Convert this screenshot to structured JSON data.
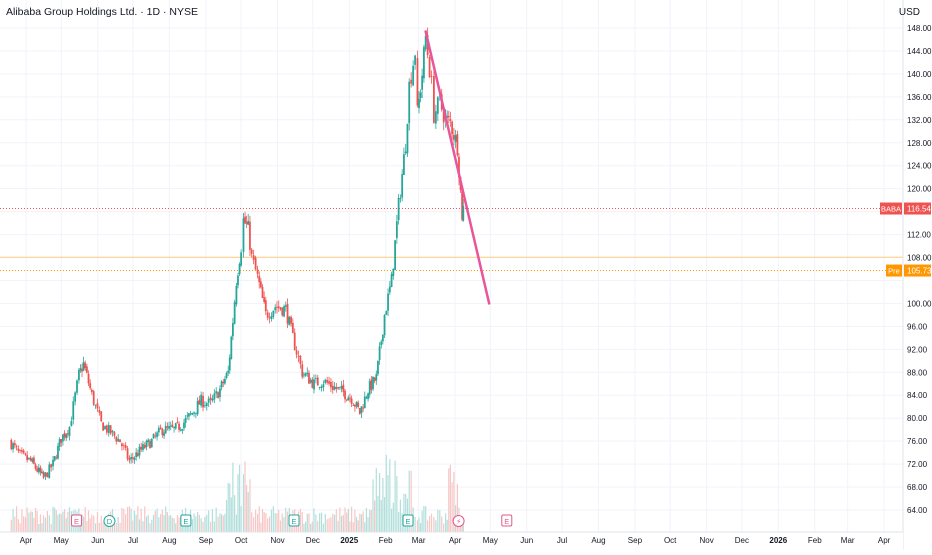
{
  "header": {
    "title": "Alibaba Group Holdings Ltd. · 1D · NYSE",
    "currency": "USD"
  },
  "colors": {
    "up": "#26a69a",
    "down": "#ef5350",
    "trendline": "#e8559a",
    "baba_label": "#ef5350",
    "pre_label": "#ff9800",
    "grid": "#f0f3fa",
    "axis_text": "#131722"
  },
  "chart_data": {
    "type": "candlestick",
    "title": "Alibaba Group Holdings Ltd. · 1D · NYSE",
    "currency": "USD",
    "ylim": [
      64,
      150
    ],
    "y_ticks": [
      64,
      68,
      72,
      76,
      80,
      84,
      88,
      92,
      96,
      100,
      104,
      108,
      112,
      116,
      120,
      124,
      128,
      132,
      136,
      140,
      144,
      148
    ],
    "x_ticks": [
      "Apr",
      "May",
      "Jun",
      "Jul",
      "Aug",
      "Sep",
      "Oct",
      "Nov",
      "Dec",
      "2025",
      "Feb",
      "Mar",
      "Apr",
      "May",
      "Jun",
      "Jul",
      "Aug",
      "Sep",
      "Oct",
      "Nov",
      "Dec",
      "2026",
      "Feb",
      "Mar",
      "Apr"
    ],
    "grid": true,
    "price_labels": [
      {
        "name": "BABA",
        "value": 116.54
      },
      {
        "name": "Pre",
        "value": 105.73
      }
    ],
    "horizontal_lines": [
      116.54,
      108.05,
      105.73
    ],
    "trendline": {
      "from": {
        "x": "2025-03-07",
        "y": 147.4
      },
      "to": {
        "x": "2025-04-30",
        "y": 100.0
      }
    },
    "events": [
      {
        "x": "2024-05-14",
        "label": "E"
      },
      {
        "x": "2024-06-11",
        "label": "D"
      },
      {
        "x": "2024-08-15",
        "label": "E"
      },
      {
        "x": "2024-11-15",
        "label": "E"
      },
      {
        "x": "2025-02-20",
        "label": "E"
      },
      {
        "x": "2025-04-04",
        "label": "⚡"
      },
      {
        "x": "2025-05-15",
        "label": "E"
      }
    ],
    "anchors": [
      [
        "2024-03-18",
        76.0
      ],
      [
        "2024-03-27",
        73.5
      ],
      [
        "2024-04-05",
        72.5
      ],
      [
        "2024-04-16",
        69.5
      ],
      [
        "2024-04-24",
        72.0
      ],
      [
        "2024-05-01",
        76.5
      ],
      [
        "2024-05-08",
        78.5
      ],
      [
        "2024-05-16",
        87.5
      ],
      [
        "2024-05-20",
        89.5
      ],
      [
        "2024-05-27",
        84.0
      ],
      [
        "2024-06-04",
        79.0
      ],
      [
        "2024-06-12",
        77.5
      ],
      [
        "2024-06-20",
        76.0
      ],
      [
        "2024-06-28",
        72.5
      ],
      [
        "2024-07-08",
        74.5
      ],
      [
        "2024-07-17",
        76.0
      ],
      [
        "2024-07-26",
        78.0
      ],
      [
        "2024-08-05",
        78.0
      ],
      [
        "2024-08-12",
        79.0
      ],
      [
        "2024-08-19",
        80.5
      ],
      [
        "2024-08-28",
        83.0
      ],
      [
        "2024-09-05",
        82.5
      ],
      [
        "2024-09-13",
        85.0
      ],
      [
        "2024-09-20",
        88.0
      ],
      [
        "2024-09-24",
        97.0
      ],
      [
        "2024-09-27",
        104.0
      ],
      [
        "2024-10-01",
        110.0
      ],
      [
        "2024-10-03",
        114.5
      ],
      [
        "2024-10-07",
        113.0
      ],
      [
        "2024-10-10",
        108.0
      ],
      [
        "2024-10-15",
        104.5
      ],
      [
        "2024-10-22",
        98.0
      ],
      [
        "2024-10-30",
        99.5
      ],
      [
        "2024-11-08",
        99.0
      ],
      [
        "2024-11-14",
        94.0
      ],
      [
        "2024-11-22",
        88.0
      ],
      [
        "2024-12-02",
        86.0
      ],
      [
        "2024-12-10",
        86.5
      ],
      [
        "2024-12-18",
        85.5
      ],
      [
        "2024-12-27",
        84.5
      ],
      [
        "2025-01-03",
        83.5
      ],
      [
        "2025-01-10",
        81.0
      ],
      [
        "2025-01-17",
        85.0
      ],
      [
        "2025-01-24",
        87.0
      ],
      [
        "2025-01-31",
        98.0
      ],
      [
        "2025-02-06",
        104.0
      ],
      [
        "2025-02-12",
        117.0
      ],
      [
        "2025-02-18",
        128.0
      ],
      [
        "2025-02-21",
        138.0
      ],
      [
        "2025-02-26",
        144.0
      ],
      [
        "2025-02-28",
        133.0
      ],
      [
        "2025-03-04",
        140.0
      ],
      [
        "2025-03-07",
        146.5
      ],
      [
        "2025-03-12",
        138.0
      ],
      [
        "2025-03-14",
        133.0
      ],
      [
        "2025-03-19",
        135.0
      ],
      [
        "2025-03-24",
        132.0
      ],
      [
        "2025-03-28",
        131.5
      ],
      [
        "2025-04-03",
        127.5
      ],
      [
        "2025-04-07",
        115.5
      ],
      [
        "2025-04-08",
        116.54
      ]
    ],
    "volume_note": "volume bars along bottom, red/green with price direction"
  }
}
